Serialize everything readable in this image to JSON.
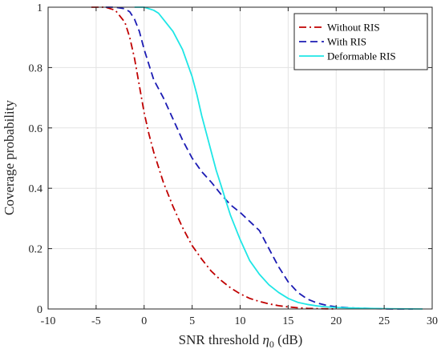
{
  "chart_data": {
    "type": "line",
    "xlabel": "SNR threshold η0 (dB)",
    "xlabel_main": "SNR threshold ",
    "xlabel_symbol": "η",
    "xlabel_sub": "0",
    "xlabel_unit": " (dB)",
    "ylabel": "Coverage probability",
    "xlim": [
      -10,
      30
    ],
    "ylim": [
      0,
      1
    ],
    "xticks": [
      -10,
      -5,
      0,
      5,
      10,
      15,
      20,
      25,
      30
    ],
    "yticks": [
      0,
      0.2,
      0.4,
      0.6,
      0.8,
      1
    ],
    "ytick_labels": [
      "0",
      "0.2",
      "0.4",
      "0.6",
      "0.8",
      "1"
    ],
    "grid": true,
    "legend_position": "top-right",
    "series": [
      {
        "name": "Without RIS",
        "color": "#c00000",
        "style": "dash-dot",
        "x": [
          -5.5,
          -4,
          -3,
          -2,
          -1.5,
          -1,
          -0.5,
          0,
          0.5,
          1,
          1.5,
          2,
          3,
          4,
          5,
          6,
          7,
          8,
          9,
          10,
          11,
          12,
          13,
          14,
          15,
          16,
          17,
          18,
          19,
          20
        ],
        "y": [
          1.0,
          1.0,
          0.99,
          0.95,
          0.9,
          0.83,
          0.74,
          0.65,
          0.58,
          0.52,
          0.47,
          0.42,
          0.34,
          0.27,
          0.21,
          0.165,
          0.125,
          0.095,
          0.07,
          0.05,
          0.035,
          0.025,
          0.017,
          0.011,
          0.007,
          0.004,
          0.002,
          0.001,
          0.0005,
          0.0
        ]
      },
      {
        "name": "With RIS",
        "color": "#1c1cb4",
        "style": "dashed",
        "x": [
          -4,
          -3,
          -2,
          -1.5,
          -1,
          -0.5,
          0,
          0.5,
          1,
          2,
          3,
          4,
          5,
          6,
          7,
          8,
          9,
          10,
          11,
          12,
          13,
          14,
          15,
          16,
          17,
          18,
          19,
          20,
          22,
          24,
          26,
          28
        ],
        "y": [
          1.0,
          1.0,
          0.995,
          0.985,
          0.96,
          0.92,
          0.86,
          0.81,
          0.76,
          0.7,
          0.63,
          0.56,
          0.5,
          0.455,
          0.42,
          0.38,
          0.345,
          0.32,
          0.29,
          0.26,
          0.2,
          0.14,
          0.09,
          0.055,
          0.033,
          0.02,
          0.012,
          0.007,
          0.003,
          0.001,
          0.0,
          0.0
        ]
      },
      {
        "name": "Deformable RIS",
        "color": "#1fe6e6",
        "style": "solid",
        "x": [
          -1,
          0,
          1,
          1.5,
          2,
          3,
          4,
          5,
          5.5,
          6,
          6.5,
          7,
          7.5,
          8,
          8.5,
          9,
          9.5,
          10,
          11,
          12,
          13,
          14,
          15,
          16,
          17,
          18,
          19,
          20,
          22,
          25,
          29
        ],
        "y": [
          1.0,
          1.0,
          0.99,
          0.98,
          0.96,
          0.92,
          0.86,
          0.77,
          0.71,
          0.64,
          0.58,
          0.52,
          0.46,
          0.41,
          0.36,
          0.31,
          0.27,
          0.23,
          0.16,
          0.115,
          0.08,
          0.055,
          0.035,
          0.022,
          0.015,
          0.01,
          0.007,
          0.005,
          0.003,
          0.001,
          0.0
        ]
      }
    ]
  }
}
